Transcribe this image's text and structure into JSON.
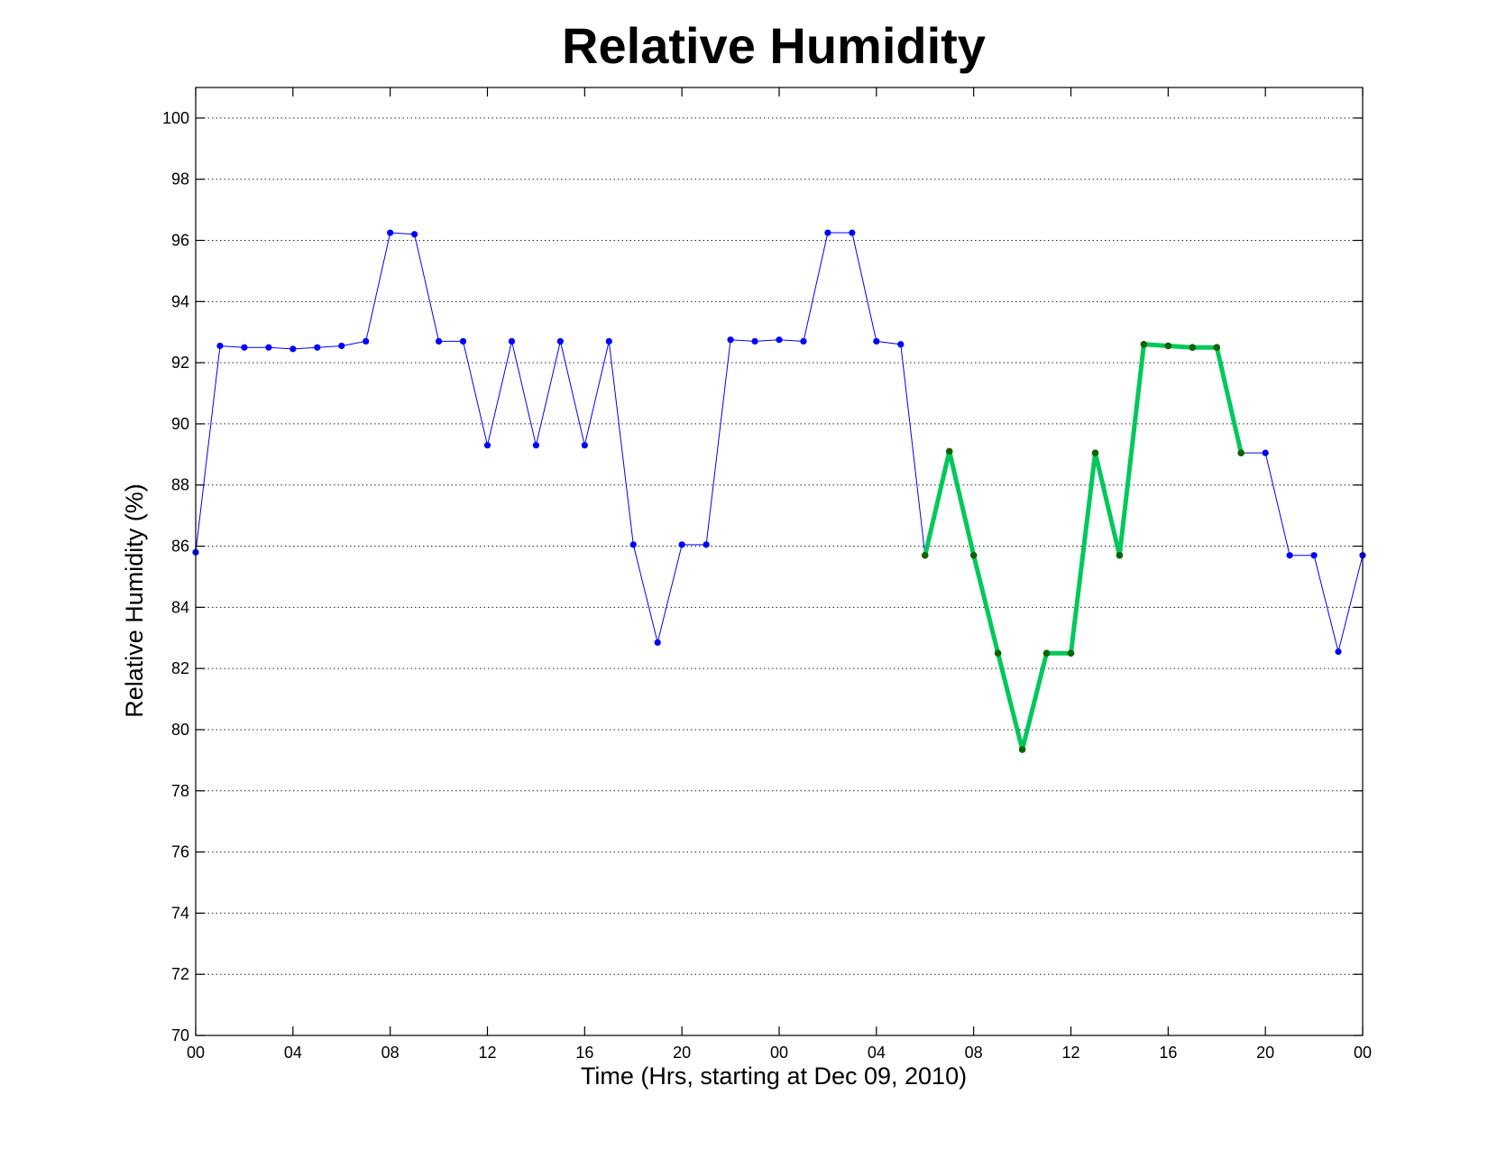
{
  "chart_data": {
    "type": "line",
    "title": "Relative Humidity",
    "xlabel": "Time (Hrs, starting at Dec 09, 2010)",
    "ylabel": "Relative Humidity (%)",
    "xlim": [
      0,
      48
    ],
    "ylim": [
      70,
      101
    ],
    "grid": "y-only-dotted",
    "x_ticks": [
      0,
      4,
      8,
      12,
      16,
      20,
      24,
      28,
      32,
      36,
      40,
      44,
      48
    ],
    "x_tick_labels": [
      "00",
      "04",
      "08",
      "12",
      "16",
      "20",
      "00",
      "04",
      "08",
      "12",
      "16",
      "20",
      "00"
    ],
    "y_ticks": [
      70,
      72,
      74,
      76,
      78,
      80,
      82,
      84,
      86,
      88,
      90,
      92,
      94,
      96,
      98,
      100
    ],
    "y_tick_labels": [
      "70",
      "72",
      "74",
      "76",
      "78",
      "80",
      "82",
      "84",
      "86",
      "88",
      "90",
      "92",
      "94",
      "96",
      "98",
      "100"
    ],
    "series": [
      {
        "color": "#0000ff",
        "marker_color": "#0000ff",
        "line_width": 1,
        "x": [
          0,
          1,
          2,
          3,
          4,
          5,
          6,
          7,
          8,
          9,
          10,
          11,
          12,
          13,
          14,
          15,
          16,
          17,
          18,
          19,
          20,
          21,
          22,
          23,
          24,
          25,
          26,
          27,
          28,
          29,
          30,
          31,
          32,
          33,
          34,
          35,
          36,
          37,
          38,
          39,
          40,
          41,
          42,
          43,
          44,
          45,
          46,
          47,
          48
        ],
        "y": [
          85.8,
          92.55,
          92.5,
          92.5,
          92.45,
          92.5,
          92.55,
          92.7,
          96.25,
          96.2,
          92.7,
          92.7,
          89.3,
          92.7,
          89.3,
          92.7,
          89.3,
          92.7,
          86.05,
          82.85,
          86.05,
          86.05,
          92.75,
          92.7,
          92.75,
          92.7,
          96.25,
          96.25,
          92.7,
          92.6,
          85.7,
          89.1,
          85.7,
          82.5,
          79.35,
          82.5,
          82.5,
          89.05,
          85.7,
          92.6,
          92.55,
          92.5,
          92.5,
          89.05,
          89.05,
          85.7,
          85.7,
          82.55,
          85.7
        ]
      },
      {
        "color": "#00c85a",
        "marker_color": "#0a6400",
        "line_width": 5,
        "x": [
          30,
          31,
          32,
          33,
          34,
          35,
          36,
          37,
          38,
          39,
          40,
          41,
          42,
          43
        ],
        "y": [
          85.7,
          89.1,
          85.7,
          82.5,
          79.35,
          82.5,
          82.5,
          89.05,
          85.7,
          92.6,
          92.55,
          92.5,
          92.5,
          89.05
        ]
      }
    ]
  }
}
